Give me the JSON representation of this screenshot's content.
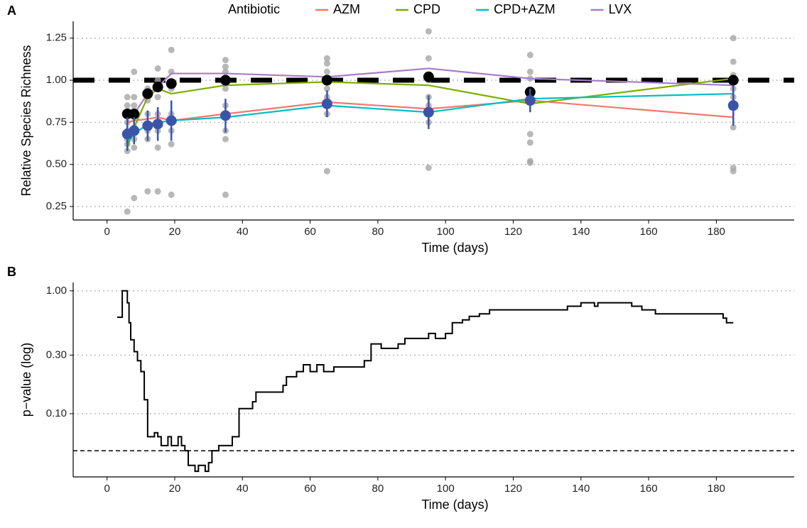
{
  "chart_data": [
    {
      "type": "line",
      "label": "A",
      "legend_title": "Antibiotic",
      "xlabel": "Time (days)",
      "ylabel": "Relative Species Richness",
      "xlim": [
        -10,
        203
      ],
      "ylim": [
        0.17,
        1.35
      ],
      "xticks": [
        0,
        20,
        40,
        60,
        80,
        100,
        120,
        140,
        160,
        180
      ],
      "yticks": [
        0.25,
        {
          "value": 0.5,
          "label": "0.50"
        },
        0.75,
        {
          "value": 1,
          "label": "1.00"
        },
        1.25
      ],
      "grid": true,
      "hline": 1,
      "x": [
        6,
        8,
        12,
        15,
        19,
        35,
        65,
        95,
        125,
        185
      ],
      "series": [
        {
          "style": "point",
          "color": "#a6a6a6",
          "x": [
            6,
            6,
            6,
            6,
            6,
            6,
            6,
            6,
            6,
            8,
            8,
            8,
            8,
            8,
            8,
            8,
            8,
            12,
            12,
            12,
            12,
            12,
            12,
            15,
            15,
            15,
            15,
            15,
            15,
            15,
            19,
            19,
            19,
            19,
            19,
            19,
            19,
            35,
            35,
            35,
            35,
            35,
            35,
            35,
            35,
            65,
            65,
            65,
            65,
            65,
            65,
            65,
            95,
            95,
            95,
            95,
            95,
            95,
            95,
            125,
            125,
            125,
            125,
            125,
            125,
            125,
            125,
            185,
            185,
            185,
            185,
            185,
            185,
            185,
            185,
            185
          ],
          "values": [
            0.22,
            0.58,
            0.62,
            0.65,
            0.7,
            0.75,
            0.8,
            0.85,
            0.9,
            0.3,
            0.6,
            0.65,
            0.72,
            0.78,
            0.85,
            0.9,
            1.05,
            0.34,
            0.65,
            0.7,
            0.8,
            0.88,
            0.95,
            0.34,
            0.6,
            0.7,
            0.8,
            0.9,
            1.0,
            1.07,
            0.32,
            0.62,
            0.7,
            0.8,
            0.95,
            1.05,
            1.18,
            0.32,
            0.65,
            0.7,
            0.85,
            0.95,
            1.05,
            1.08,
            1.12,
            0.46,
            0.8,
            0.9,
            0.95,
            1.05,
            1.1,
            1.13,
            0.48,
            0.75,
            0.85,
            0.9,
            1.0,
            1.13,
            1.29,
            0.51,
            0.52,
            0.63,
            0.68,
            0.9,
            1.01,
            1.05,
            1.15,
            0.46,
            0.48,
            0.72,
            0.9,
            0.95,
            1.0,
            1.03,
            1.11,
            1.25
          ]
        },
        {
          "name": "AZM",
          "style": "line",
          "color": "#F8766D",
          "values": [
            0.75,
            0.76,
            0.77,
            0.78,
            0.76,
            0.8,
            0.87,
            0.83,
            0.88,
            0.78
          ]
        },
        {
          "name": "CPD",
          "style": "line",
          "color": "#7CAE00",
          "values": [
            0.6,
            0.72,
            0.9,
            0.95,
            0.92,
            0.97,
            0.99,
            0.97,
            0.86,
            1.01
          ]
        },
        {
          "name": "CPD+AZM",
          "style": "line",
          "color": "#00BFC4",
          "values": [
            0.63,
            0.68,
            0.74,
            0.75,
            0.76,
            0.78,
            0.85,
            0.81,
            0.89,
            0.92
          ]
        },
        {
          "name": "LVX",
          "style": "line",
          "color": "#A77CC7",
          "values": [
            0.8,
            0.8,
            0.92,
            0.96,
            1.04,
            1.04,
            1.02,
            1.07,
            1.01,
            0.97
          ]
        },
        {
          "style": "point",
          "color": "#000000",
          "values": [
            0.8,
            0.8,
            0.92,
            0.96,
            0.98,
            1.0,
            1.0,
            1.02,
            0.93,
            1.0
          ]
        },
        {
          "style": "point",
          "color": "#3A55A8",
          "values": [
            0.68,
            0.7,
            0.73,
            0.74,
            0.76,
            0.79,
            0.86,
            0.81,
            0.88,
            0.85
          ],
          "errors": [
            0.1,
            0.08,
            0.09,
            0.1,
            0.12,
            0.1,
            0.08,
            0.1,
            0.07,
            0.12
          ]
        }
      ]
    },
    {
      "type": "line",
      "label": "B",
      "xlabel": "Time (days)",
      "ylabel": "p−value (log)",
      "log_y": true,
      "step": true,
      "xlim": [
        -10,
        203
      ],
      "ylim": [
        0.0306,
        1.17
      ],
      "xticks": [
        0,
        20,
        40,
        60,
        80,
        100,
        120,
        140,
        160,
        180
      ],
      "yticks": [
        {
          "value": 0.1,
          "label": "0.10"
        },
        {
          "value": 0.3,
          "label": "0.30"
        },
        {
          "value": 1,
          "label": "1.00"
        }
      ],
      "grid": true,
      "hline": 0.05,
      "series": [
        {
          "color": "#000000",
          "x": [
            3,
            4.5,
            6,
            6.5,
            7,
            8,
            9,
            10,
            11,
            12,
            13,
            14,
            15,
            16,
            18,
            19,
            21,
            22,
            23,
            24,
            26,
            27,
            29,
            30,
            31,
            33,
            35,
            37,
            39,
            43,
            44,
            52,
            53,
            56,
            58,
            60,
            62,
            64,
            67,
            76,
            78,
            81,
            86,
            88,
            95,
            97,
            100,
            102,
            105,
            107,
            110,
            113,
            125,
            136,
            140,
            144,
            145,
            155,
            158,
            162,
            180,
            182,
            183,
            185
          ],
          "values": [
            0.61,
            1.0,
            0.8,
            0.55,
            0.4,
            0.32,
            0.27,
            0.22,
            0.13,
            0.065,
            0.065,
            0.07,
            0.065,
            0.055,
            0.065,
            0.055,
            0.065,
            0.055,
            0.05,
            0.038,
            0.034,
            0.038,
            0.034,
            0.04,
            0.05,
            0.055,
            0.055,
            0.065,
            0.11,
            0.125,
            0.15,
            0.17,
            0.2,
            0.22,
            0.25,
            0.22,
            0.25,
            0.22,
            0.24,
            0.27,
            0.37,
            0.34,
            0.37,
            0.41,
            0.45,
            0.41,
            0.45,
            0.55,
            0.58,
            0.62,
            0.65,
            0.7,
            0.7,
            0.75,
            0.8,
            0.75,
            0.8,
            0.75,
            0.7,
            0.65,
            0.65,
            0.6,
            0.55,
            0.55
          ]
        }
      ]
    }
  ]
}
